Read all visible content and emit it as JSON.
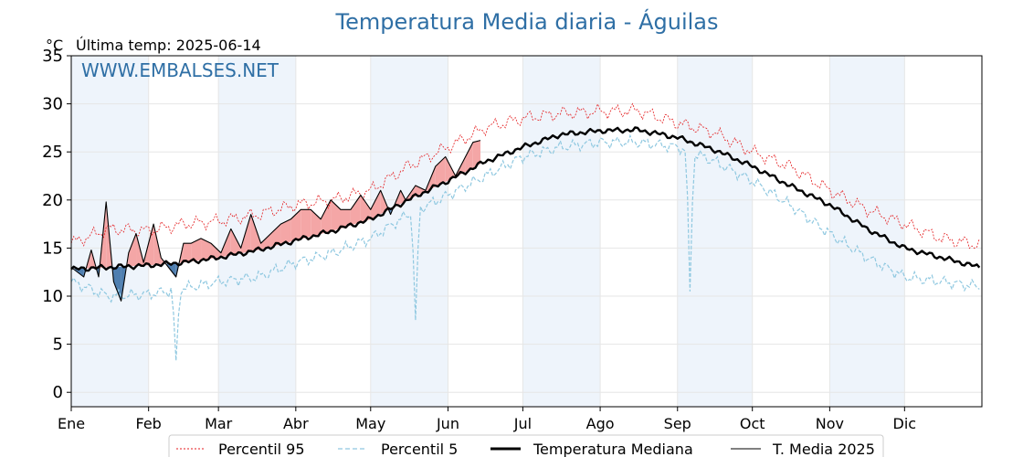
{
  "chart_data": {
    "type": "line",
    "title": "Temperatura Media diaria - Águilas",
    "unit": "°C",
    "last_temp_label": "Última temp: 2025-06-14",
    "watermark": "WWW.EMBALSES.NET",
    "ylim": [
      -1.5,
      35
    ],
    "yticks": [
      0,
      5,
      10,
      15,
      20,
      25,
      30,
      35
    ],
    "months": [
      "Ene",
      "Feb",
      "Mar",
      "Abr",
      "May",
      "Jun",
      "Jul",
      "Ago",
      "Sep",
      "Oct",
      "Nov",
      "Dic"
    ],
    "month_start_day": [
      0,
      31,
      59,
      90,
      120,
      151,
      181,
      212,
      243,
      273,
      304,
      334
    ],
    "days_in_year": 365,
    "grid": true,
    "legend_position": "bottom",
    "colors": {
      "p95": "#e41a1c",
      "p5": "#8fc8e0",
      "median": "#000000",
      "current": "#000000",
      "above_fill": "#f4a6a6",
      "below_fill": "#4f7fb0",
      "band": "#eef4fb",
      "title": "#2f6fa5"
    },
    "series": [
      {
        "name": "Percentil 95",
        "key": "p95",
        "days": [
          0,
          15,
          31,
          45,
          59,
          75,
          90,
          105,
          120,
          135,
          151,
          166,
          181,
          196,
          212,
          227,
          243,
          258,
          273,
          288,
          304,
          319,
          334,
          349,
          364
        ],
        "values": [
          15.5,
          17.0,
          16.8,
          17.5,
          17.8,
          18.5,
          19.5,
          20.0,
          21.0,
          23.5,
          25.5,
          27.5,
          28.5,
          29.0,
          29.2,
          29.3,
          28.0,
          27.0,
          25.0,
          23.5,
          21.0,
          19.0,
          17.5,
          16.0,
          15.3
        ]
      },
      {
        "name": "Percentil 5",
        "key": "p5",
        "days": [
          0,
          15,
          31,
          45,
          59,
          75,
          90,
          105,
          120,
          135,
          151,
          166,
          181,
          196,
          212,
          227,
          243,
          258,
          273,
          288,
          304,
          319,
          334,
          349,
          364
        ],
        "values": [
          11.5,
          10.0,
          10.2,
          10.8,
          11.5,
          12.0,
          13.5,
          14.5,
          16.0,
          18.5,
          20.5,
          22.5,
          24.5,
          25.5,
          26.0,
          26.0,
          25.5,
          24.0,
          22.0,
          19.5,
          16.5,
          14.0,
          12.0,
          11.5,
          11.0
        ],
        "dips": [
          [
            42,
            3.3
          ],
          [
            138,
            7.5
          ],
          [
            248,
            10.5
          ]
        ]
      },
      {
        "name": "Temperatura Mediana",
        "key": "median",
        "days": [
          0,
          15,
          31,
          45,
          59,
          75,
          90,
          105,
          120,
          135,
          151,
          166,
          181,
          196,
          212,
          227,
          243,
          258,
          273,
          288,
          304,
          319,
          334,
          349,
          364
        ],
        "values": [
          12.8,
          13.0,
          13.2,
          13.5,
          14.0,
          14.8,
          15.8,
          16.8,
          18.0,
          20.0,
          22.0,
          24.0,
          25.5,
          26.8,
          27.2,
          27.3,
          26.5,
          25.2,
          23.5,
          21.5,
          19.5,
          17.0,
          15.0,
          14.0,
          13.0
        ]
      },
      {
        "name": "T. Media 2025",
        "key": "current",
        "days": [
          0,
          5,
          8,
          11,
          14,
          17,
          20,
          23,
          26,
          29,
          33,
          36,
          39,
          42,
          45,
          48,
          52,
          56,
          60,
          64,
          68,
          72,
          76,
          80,
          84,
          88,
          92,
          96,
          100,
          104,
          108,
          112,
          116,
          120,
          124,
          128,
          132,
          134,
          138,
          142,
          146,
          150,
          154,
          158,
          161,
          164
        ],
        "values": [
          13.0,
          12.0,
          14.8,
          12.0,
          19.8,
          11.5,
          9.5,
          14.5,
          16.5,
          13.5,
          17.5,
          14.0,
          13.0,
          12.0,
          15.5,
          15.5,
          16.0,
          15.5,
          14.5,
          17.0,
          15.0,
          18.5,
          15.5,
          16.5,
          17.5,
          18.0,
          19.0,
          19.0,
          18.0,
          20.0,
          19.0,
          19.0,
          20.5,
          19.0,
          21.0,
          18.5,
          21.0,
          20.0,
          21.5,
          21.0,
          23.5,
          24.5,
          22.5,
          24.5,
          26.0,
          26.2
        ]
      }
    ]
  }
}
